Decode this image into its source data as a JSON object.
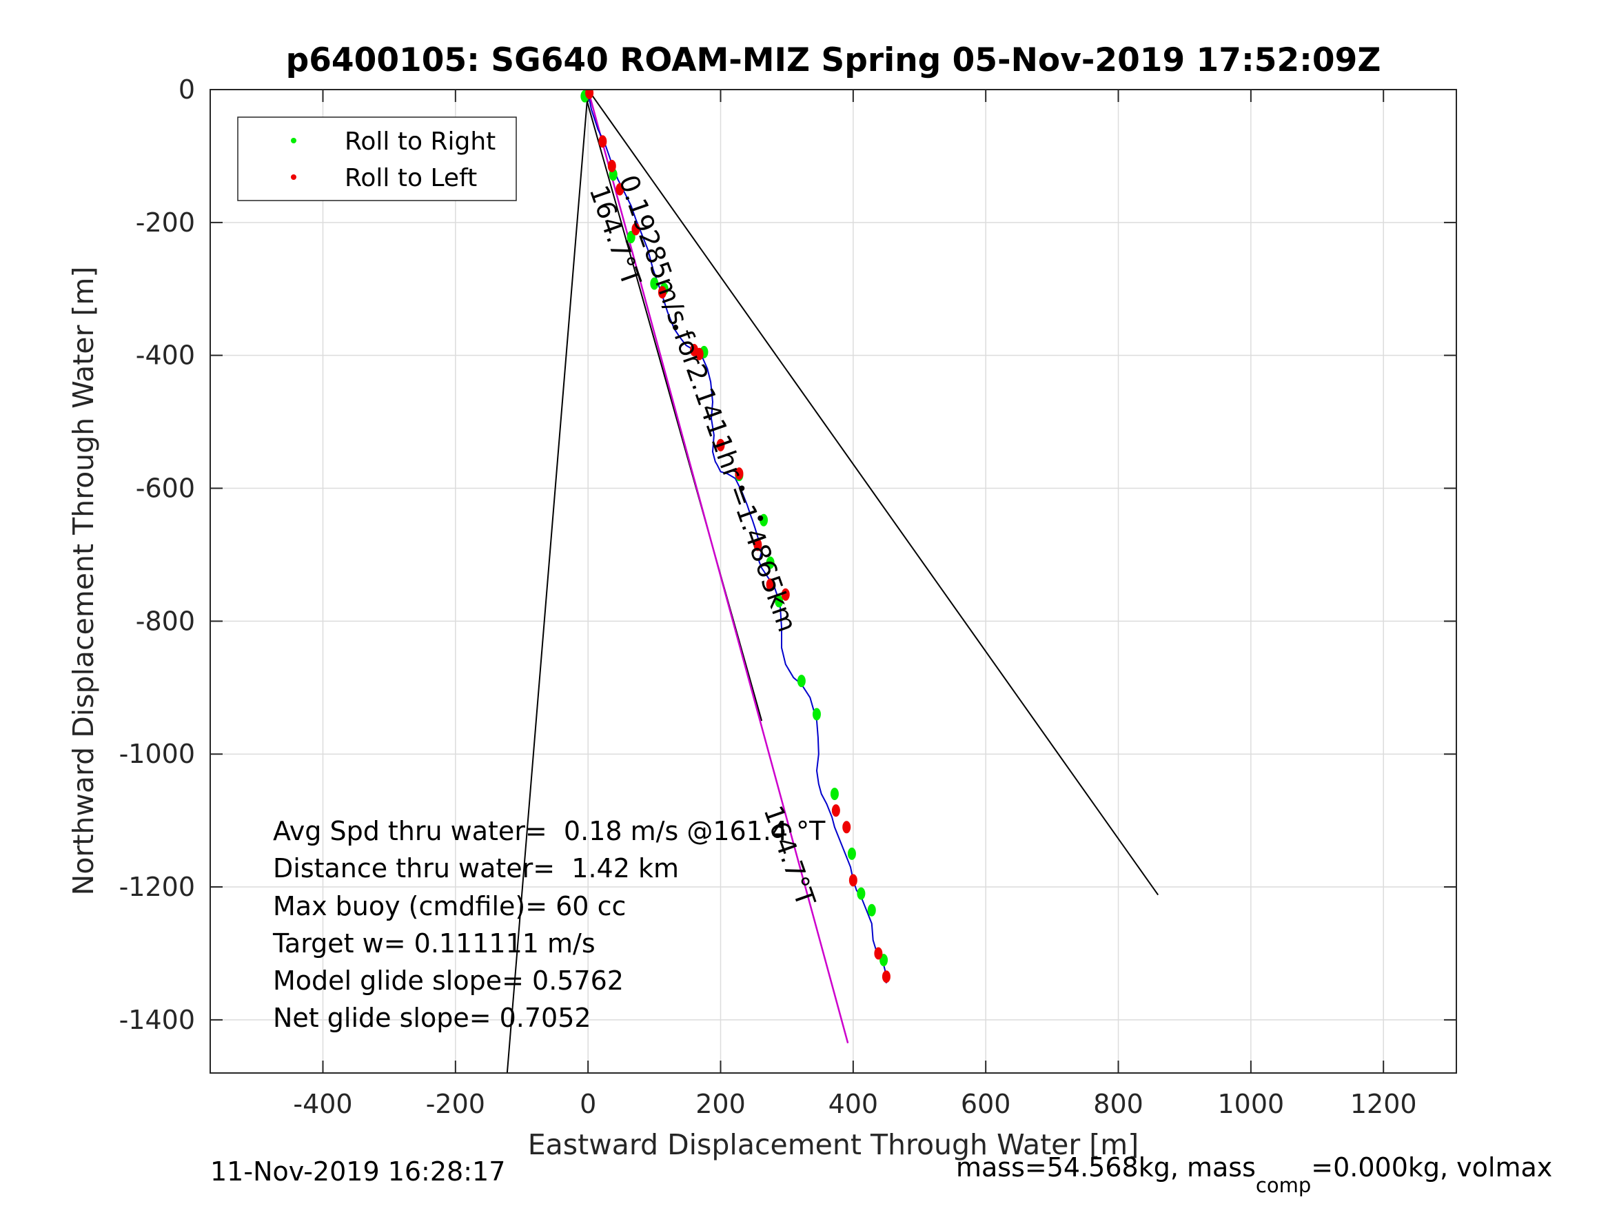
{
  "chart_data": {
    "type": "line",
    "title": "p6400105: SG640 ROAM-MIZ Spring 05-Nov-2019 17:52:09Z",
    "xlabel": "Eastward Displacement Through Water [m]",
    "ylabel": "Northward Displacement Through Water [m]",
    "xlim": [
      -570,
      1310
    ],
    "ylim": [
      -1480,
      0
    ],
    "xticks": [
      -400,
      -200,
      0,
      200,
      400,
      600,
      800,
      1000,
      1200
    ],
    "yticks": [
      0,
      -200,
      -400,
      -600,
      -800,
      -1000,
      -1200,
      -1400
    ],
    "grid": true,
    "legend": {
      "placement": "top-left",
      "entries": [
        {
          "label": "Roll to Right",
          "color": "#00ee00"
        },
        {
          "label": "Roll to Left",
          "color": "#ee0000"
        }
      ]
    },
    "colors": {
      "track": "#0000cc",
      "heading_line": "#cc00cc",
      "cone": "#000000",
      "right": "#00ee00",
      "left": "#ee0000"
    },
    "track": {
      "x": [
        0,
        5,
        15,
        25,
        32,
        38,
        45,
        55,
        65,
        72,
        80,
        90,
        98,
        105,
        112,
        120,
        130,
        138,
        148,
        160,
        172,
        180,
        185,
        188,
        186,
        190,
        188,
        192,
        195,
        200,
        210,
        222,
        232,
        240,
        245,
        248,
        252,
        258,
        262,
        258,
        262,
        272,
        280,
        285,
        290,
        292,
        292,
        298,
        310,
        322,
        335,
        345,
        347,
        348,
        345,
        348,
        352,
        360,
        368,
        372,
        380,
        388,
        396,
        400,
        405,
        412,
        420,
        428,
        430,
        436,
        444,
        448,
        450
      ],
      "y": [
        -5,
        -30,
        -60,
        -80,
        -100,
        -118,
        -135,
        -155,
        -175,
        -195,
        -215,
        -240,
        -270,
        -290,
        -310,
        -335,
        -360,
        -372,
        -385,
        -392,
        -402,
        -420,
        -440,
        -470,
        -495,
        -520,
        -545,
        -560,
        -565,
        -575,
        -578,
        -585,
        -605,
        -625,
        -640,
        -648,
        -660,
        -680,
        -695,
        -710,
        -720,
        -735,
        -745,
        -760,
        -780,
        -810,
        -840,
        -865,
        -885,
        -895,
        -915,
        -950,
        -975,
        -1000,
        -1025,
        -1045,
        -1060,
        -1075,
        -1095,
        -1110,
        -1130,
        -1150,
        -1170,
        -1190,
        -1205,
        -1215,
        -1235,
        -1255,
        -1280,
        -1300,
        -1310,
        -1325,
        -1345
      ]
    },
    "heading_line": {
      "x": [
        0,
        392
      ],
      "y": [
        0,
        -1435
      ],
      "label": "164.7°T"
    },
    "cone_left": {
      "x": [
        0,
        -122
      ],
      "y": [
        0,
        -1480
      ]
    },
    "cone_right": {
      "x": [
        0,
        860
      ],
      "y": [
        0,
        -1212
      ]
    },
    "center_line": {
      "x": [
        -5,
        262
      ],
      "y": [
        -5,
        -950
      ]
    },
    "right_rolls": {
      "x": [
        -5,
        38,
        65,
        100,
        115,
        175,
        228,
        265,
        275,
        288,
        322,
        345,
        372,
        398,
        412,
        428,
        446
      ],
      "y": [
        -10,
        -128,
        -222,
        -292,
        -300,
        -395,
        -580,
        -648,
        -712,
        -770,
        -890,
        -940,
        -1060,
        -1150,
        -1210,
        -1235,
        -1310
      ]
    },
    "left_rolls": {
      "x": [
        2,
        22,
        36,
        48,
        72,
        112,
        160,
        168,
        200,
        228,
        256,
        275,
        298,
        374,
        390,
        400,
        438,
        450
      ],
      "y": [
        -5,
        -78,
        -115,
        -150,
        -210,
        -305,
        -392,
        -398,
        -535,
        -578,
        -685,
        -745,
        -760,
        -1085,
        -1110,
        -1190,
        -1300,
        -1335
      ]
    },
    "black_points": {
      "x": [
        132,
        232,
        260
      ],
      "y": [
        -358,
        -600,
        -645
      ]
    },
    "annotations": {
      "speed_label": "0.19285m/s for2.1411hr =1.4865km",
      "heading_label_top": "164.7°T",
      "heading_label_bottom": "164.7°T"
    },
    "stats": [
      "Avg Spd thru water=  0.18 m/s @161.4 °T",
      "Distance thru water=  1.42 km",
      "Max buoy (cmdfile)= 60 cc",
      "Target w= 0.111111 m/s",
      "Model glide slope= 0.5762",
      "Net glide slope= 0.7052"
    ]
  },
  "footer": {
    "timestamp": "11-Nov-2019 16:28:17",
    "mass_prefix": "mass=54.568kg, mass",
    "mass_sub": "comp",
    "mass_suffix": "=0.000kg, volmax"
  }
}
